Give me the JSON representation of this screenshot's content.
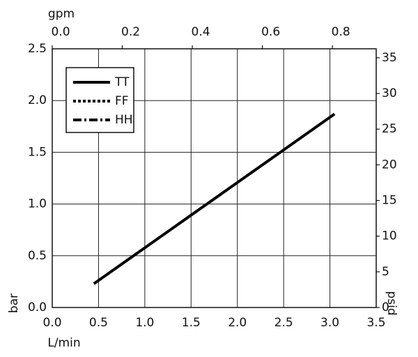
{
  "chart_data": {
    "type": "line",
    "x_label": "L/min",
    "y_label": "bar",
    "x2_label": "gpm",
    "y2_label": "psid",
    "x": [
      0.45,
      3.05
    ],
    "series": [
      {
        "name": "TT",
        "color": "#000000",
        "dash": "solid",
        "values": [
          0.23,
          1.87
        ]
      },
      {
        "name": "FF",
        "color": "#000000",
        "dash": "dotted",
        "values": [
          null,
          null
        ]
      },
      {
        "name": "HH",
        "color": "#000000",
        "dash": "dashdot",
        "values": [
          null,
          null
        ]
      }
    ],
    "xlim": [
      0,
      3.5
    ],
    "xticks": [
      {
        "value": 0,
        "label": "0.0"
      },
      {
        "value": 0.5,
        "label": "0.5"
      },
      {
        "value": 1,
        "label": "1.0"
      },
      {
        "value": 1.5,
        "label": "1.5"
      },
      {
        "value": 2,
        "label": "2.0"
      },
      {
        "value": 2.5,
        "label": "2.5"
      },
      {
        "value": 3,
        "label": "3.0"
      },
      {
        "value": 3.5,
        "label": "3.5"
      }
    ],
    "ylim": [
      0,
      2.5
    ],
    "yticks": [
      {
        "value": 0,
        "label": "0.0"
      },
      {
        "value": 0.5,
        "label": "0.5"
      },
      {
        "value": 1,
        "label": "1.0"
      },
      {
        "value": 1.5,
        "label": "1.5"
      },
      {
        "value": 2,
        "label": "2.0"
      },
      {
        "value": 2.5,
        "label": "2.5"
      }
    ],
    "x2lim": [
      0,
      0.925
    ],
    "x2ticks": [
      {
        "value": 0,
        "label": "0.0"
      },
      {
        "value": 0.2,
        "label": "0.2"
      },
      {
        "value": 0.4,
        "label": "0.4"
      },
      {
        "value": 0.6,
        "label": "0.6"
      },
      {
        "value": 0.8,
        "label": "0.8"
      }
    ],
    "y2lim": [
      0,
      36.26
    ],
    "y2ticks": [
      0,
      5,
      10,
      15,
      20,
      25,
      30,
      35
    ],
    "grid": true,
    "legend": "upper left"
  }
}
